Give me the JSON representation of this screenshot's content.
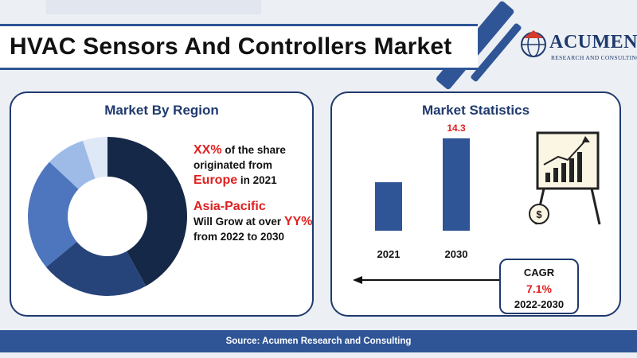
{
  "title": "HVAC Sensors And Controllers Market",
  "logo": {
    "name": "ACUMEN",
    "tagline": "RESEARCH AND CONSULTING"
  },
  "region_panel": {
    "title": "Market By Region",
    "line1_highlight": "XX%",
    "line1_text": " of the share originated from ",
    "line1_region": "Europe",
    "line1_year": " in 2021",
    "line2_region": "Asia-Pacific",
    "line2_text": "Will Grow at over ",
    "line2_highlight": "YY%",
    "line2_tail": " from 2022 to 2030"
  },
  "stats_panel": {
    "title": "Market Statistics",
    "cagr_label": "CAGR",
    "cagr_value": "7.1%",
    "cagr_period": "2022-2030"
  },
  "footer": "Source: Acumen Research and Consulting",
  "colors": {
    "navy": "#1f3a6e",
    "blue": "#2f5597",
    "accent_red": "#e02020"
  },
  "chart_data": [
    {
      "type": "pie",
      "variant": "donut",
      "slices": [
        {
          "value": 42,
          "color": "#152848"
        },
        {
          "value": 22,
          "color": "#27447a"
        },
        {
          "value": 23,
          "color": "#4e76be"
        },
        {
          "value": 8,
          "color": "#9dbbe6"
        },
        {
          "value": 5,
          "color": "#dfe8f6"
        }
      ]
    },
    {
      "type": "bar",
      "categories": [
        "2021",
        "2030"
      ],
      "values": [
        7.5,
        14.3
      ],
      "data_labels": [
        "",
        "14.3"
      ],
      "ylim": [
        0,
        16
      ],
      "color": "#2f5597"
    }
  ]
}
